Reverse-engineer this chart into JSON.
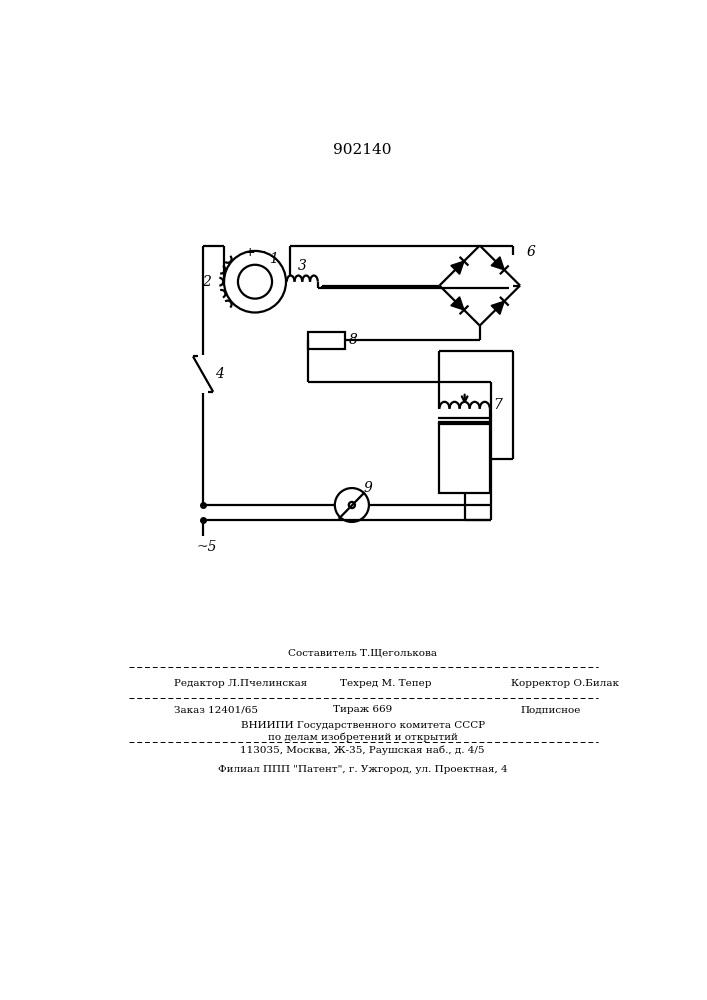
{
  "patent_number": "902140",
  "background_color": "#ffffff",
  "line_color": "#000000",
  "fig_width": 7.07,
  "fig_height": 10.0,
  "footer_line1_top": "Составитель Т.Щеголькова",
  "footer_line1_left": "Редактор Л.Пчелинская",
  "footer_line1_center": "Техред М. Тепер",
  "footer_line1_right": "Корректор О.Билак",
  "footer_line2_left": "Заказ 12401/65",
  "footer_line2_center": "Тираж 669",
  "footer_line2_right": "Подписное",
  "footer_line3": "ВНИИПИ Государственного комитета СССР",
  "footer_line4": "по делам изобретений и открытий",
  "footer_line5": "113035, Москва, Ж-35, Раушская наб., д. 4/5",
  "footer_line6": "Филиал ППП \"Патент\", г. Ужгород, ул. Проектная, 4"
}
